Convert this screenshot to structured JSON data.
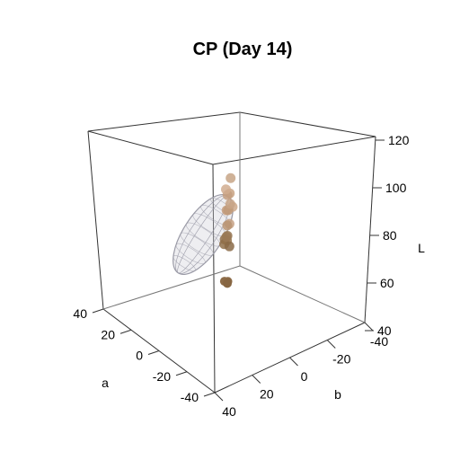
{
  "chart_data": {
    "type": "scatter3d",
    "title": "CP (Day 14)",
    "axes": {
      "a": {
        "label": "a",
        "range": [
          -40,
          40
        ],
        "ticks": [
          "-40",
          "-20",
          "0",
          "20",
          "40"
        ]
      },
      "b": {
        "label": "b",
        "range": [
          -40,
          40
        ],
        "ticks": [
          "40",
          "20",
          "0",
          "-20",
          "-40"
        ]
      },
      "L": {
        "label": "L",
        "range": [
          40,
          120
        ],
        "ticks": [
          "40",
          "60",
          "80",
          "100",
          "120"
        ]
      }
    },
    "ellipsoid": {
      "description": "confidence ellipsoid",
      "fill_color": "#cfcfd6",
      "wire_color": "#9a9aa6"
    },
    "points": [
      {
        "a": 18,
        "b": -12,
        "L": 78,
        "color": "#c7a586"
      },
      {
        "a": 16,
        "b": -10,
        "L": 74,
        "color": "#c9a383"
      },
      {
        "a": 19,
        "b": -11,
        "L": 72,
        "color": "#c49f80"
      },
      {
        "a": 14,
        "b": -10,
        "L": 70,
        "color": "#cda889"
      },
      {
        "a": 17,
        "b": -9,
        "L": 68,
        "color": "#c59e7f"
      },
      {
        "a": 20,
        "b": -12,
        "L": 66,
        "color": "#bf9a79"
      },
      {
        "a": 15,
        "b": -9,
        "L": 64,
        "color": "#c6a184"
      },
      {
        "a": 18,
        "b": -10,
        "L": 62,
        "color": "#b99473"
      },
      {
        "a": 16,
        "b": -8,
        "L": 76,
        "color": "#d1ad8f"
      },
      {
        "a": 13,
        "b": -8,
        "L": 72,
        "color": "#c8a587"
      },
      {
        "a": 22,
        "b": -13,
        "L": 56,
        "color": "#957451"
      },
      {
        "a": 24,
        "b": -13,
        "L": 54,
        "color": "#8e6d4b"
      },
      {
        "a": 21,
        "b": -12,
        "L": 55,
        "color": "#98774f"
      },
      {
        "a": 23,
        "b": -12,
        "L": 53,
        "color": "#917049"
      },
      {
        "a": 22,
        "b": -14,
        "L": 52,
        "color": "#8a6a47"
      },
      {
        "a": 20,
        "b": -11,
        "L": 57,
        "color": "#9a7956"
      }
    ],
    "shadow_points": [
      {
        "a": 22,
        "b": -13,
        "L": 40,
        "color": "#8b6a46"
      },
      {
        "a": 23,
        "b": -12,
        "L": 40,
        "color": "#8d6c48"
      },
      {
        "a": 21,
        "b": -12,
        "L": 40,
        "color": "#876642"
      }
    ]
  }
}
